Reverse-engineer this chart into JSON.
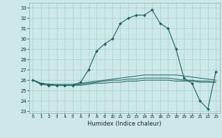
{
  "xlabel": "Humidex (Indice chaleur)",
  "xlim": [
    -0.5,
    23.5
  ],
  "ylim": [
    22.8,
    33.5
  ],
  "yticks": [
    23,
    24,
    25,
    26,
    27,
    28,
    29,
    30,
    31,
    32,
    33
  ],
  "xticks": [
    0,
    1,
    2,
    3,
    4,
    5,
    6,
    7,
    8,
    9,
    10,
    11,
    12,
    13,
    14,
    15,
    16,
    17,
    18,
    19,
    20,
    21,
    22,
    23
  ],
  "bg_color": "#cce8e8",
  "grid_color": "#aacccc",
  "line_color": "#1a6060",
  "main_line": [
    26.0,
    25.6,
    25.5,
    25.5,
    25.5,
    25.5,
    25.8,
    27.0,
    28.8,
    29.5,
    30.0,
    31.5,
    32.0,
    32.3,
    32.3,
    32.8,
    31.5,
    31.0,
    29.0,
    26.2,
    25.7,
    24.0,
    23.2,
    26.8
  ],
  "flat_line1": [
    26.0,
    25.7,
    25.6,
    25.6,
    25.6,
    25.6,
    25.7,
    25.8,
    25.9,
    26.0,
    26.1,
    26.2,
    26.3,
    26.4,
    26.5,
    26.5,
    26.5,
    26.5,
    26.5,
    26.4,
    26.3,
    26.2,
    26.1,
    26.0
  ],
  "flat_line2": [
    26.0,
    25.7,
    25.6,
    25.5,
    25.5,
    25.5,
    25.6,
    25.7,
    25.8,
    25.9,
    26.0,
    26.0,
    26.1,
    26.1,
    26.2,
    26.2,
    26.2,
    26.2,
    26.1,
    26.0,
    26.0,
    25.9,
    25.9,
    25.8
  ],
  "flat_line3": [
    26.0,
    25.7,
    25.6,
    25.5,
    25.5,
    25.5,
    25.5,
    25.6,
    25.7,
    25.7,
    25.8,
    25.8,
    25.9,
    25.9,
    26.0,
    26.0,
    26.0,
    26.0,
    25.9,
    25.9,
    25.9,
    25.8,
    25.8,
    25.8
  ]
}
